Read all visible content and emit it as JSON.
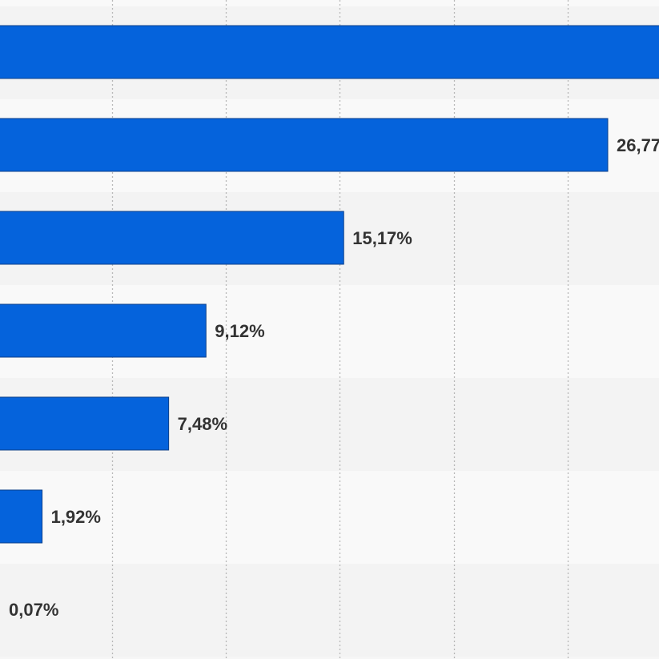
{
  "chart_data": {
    "type": "bar",
    "orientation": "horizontal",
    "title": "",
    "xlabel": "",
    "ylabel": "",
    "grid": true,
    "legend": "none",
    "values": [
      31.6,
      26.77,
      15.17,
      9.12,
      7.48,
      1.92,
      0.07
    ],
    "value_labels": [
      "",
      "26,77",
      "15,17%",
      "9,12%",
      "7,48%",
      "1,92%",
      "0,07%"
    ],
    "xlim": [
      0,
      31.6
    ],
    "colors": {
      "bar": "#0563dc",
      "bar_border": "#0b3f8a",
      "grid": "#b8b8b8",
      "label": "#333333",
      "row_band_a": "#f3f3f3",
      "row_band_b": "#f9f9f9"
    }
  }
}
